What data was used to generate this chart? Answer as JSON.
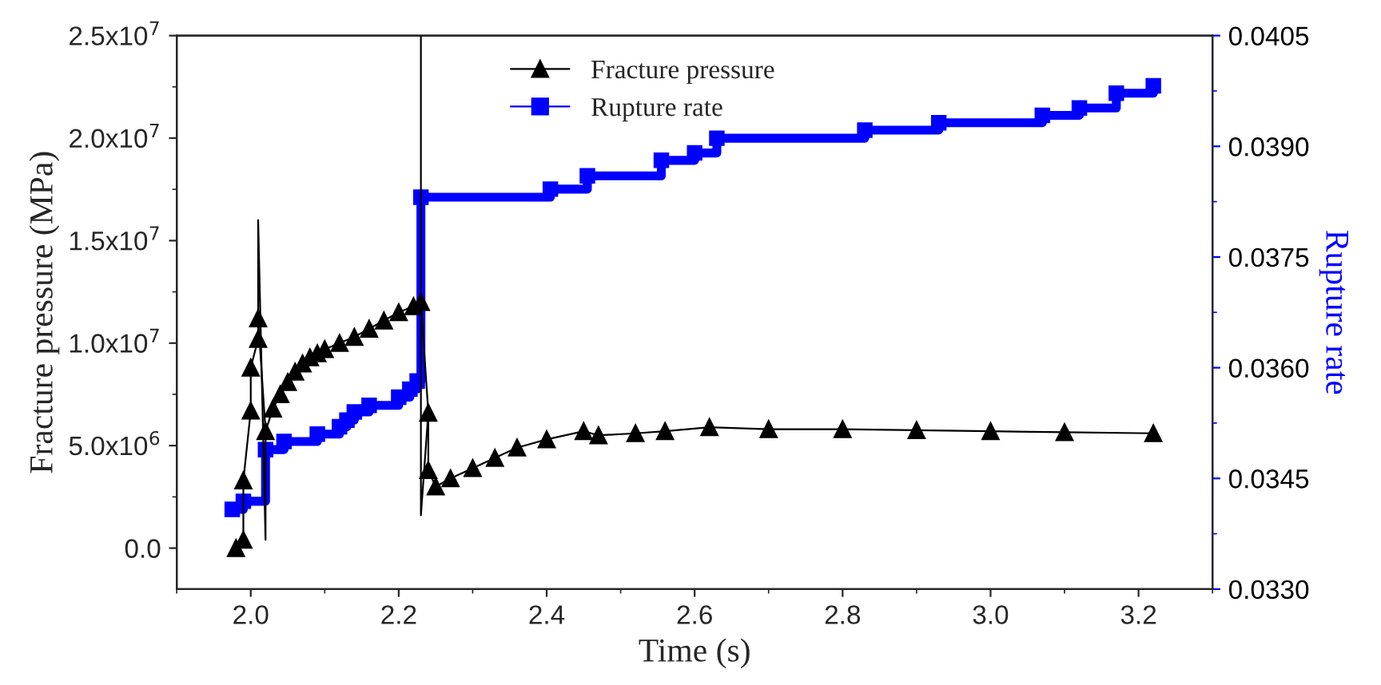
{
  "chart_data": {
    "type": "line",
    "xlabel": "Time (s)",
    "ylabel": "Fracture pressure (MPa)",
    "y2label": "Rupture rate",
    "xlim": [
      1.9,
      3.3
    ],
    "xticks": [
      {
        "value": 2,
        "label": "2.0"
      },
      2.2,
      2.4,
      2.6,
      2.8,
      {
        "value": 3,
        "label": "3.0"
      },
      3.2
    ],
    "ylim": [
      -2000000,
      25000000
    ],
    "yticks": [
      {
        "value": 0,
        "label": "0.0"
      },
      {
        "value": 5000000,
        "label": "5.0x10$^{6}$"
      },
      {
        "value": 10000000,
        "label": "1.0x10$^{7}$"
      },
      {
        "value": 15000000,
        "label": "1.5x10$^{7}$"
      },
      {
        "value": 20000000,
        "label": "2.0x10$^{7}$"
      },
      {
        "value": 25000000,
        "label": "2.5x10$^{7}$"
      }
    ],
    "y2lim": [
      0.033,
      0.0405
    ],
    "y2ticks": [
      {
        "value": 0.033,
        "label": "0.0330"
      },
      {
        "value": 0.0345,
        "label": "0.0345"
      },
      {
        "value": 0.036,
        "label": "0.0360"
      },
      {
        "value": 0.0375,
        "label": "0.0375"
      },
      {
        "value": 0.039,
        "label": "0.0390"
      },
      {
        "value": 0.0405,
        "label": "0.0405"
      }
    ],
    "legend": "top",
    "grid": false,
    "series": [
      {
        "name": "Fracture pressure",
        "color": "#000000",
        "marker": "triangle",
        "x": [
          1.98,
          1.99,
          1.99,
          2.0,
          2.0,
          2.01,
          2.01,
          2.02,
          2.03,
          2.04,
          2.05,
          2.06,
          2.07,
          2.08,
          2.09,
          2.1,
          2.12,
          2.14,
          2.16,
          2.18,
          2.2,
          2.22,
          2.23,
          2.24,
          2.24,
          2.25,
          2.27,
          2.3,
          2.33,
          2.36,
          2.4,
          2.45,
          2.47,
          2.52,
          2.56,
          2.62,
          2.7,
          2.8,
          2.9,
          3.0,
          3.1,
          3.22
        ],
        "values": [
          0,
          400000,
          3300000,
          6700000,
          8800000,
          10200000,
          11200000,
          5700000,
          6800000,
          7500000,
          8100000,
          8600000,
          9000000,
          9300000,
          9500000,
          9700000,
          10000000,
          10300000,
          10700000,
          11100000,
          11500000,
          11800000,
          12000000,
          6600000,
          3800000,
          3000000,
          3400000,
          3900000,
          4400000,
          4900000,
          5300000,
          5700000,
          5500000,
          5600000,
          5700000,
          5900000,
          5800000,
          5800000,
          5750000,
          5700000,
          5650000,
          5600000
        ]
      },
      {
        "color": "#000000",
        "marker": "none",
        "x": [
          2.01,
          2.01,
          2.02,
          2.02
        ],
        "values": [
          11200000,
          16000000,
          400000,
          5700000
        ]
      },
      {
        "color": "#000000",
        "marker": "none",
        "x": [
          2.23,
          2.23,
          2.23,
          2.24
        ],
        "values": [
          12000000,
          25000000,
          1600000,
          6600000
        ]
      },
      {
        "name": "Rupture rate",
        "type": "step",
        "axis": "y2",
        "color": "#0000ff",
        "marker": "square",
        "x": [
          1.975,
          1.99,
          2.02,
          2.045,
          2.09,
          2.12,
          2.13,
          2.14,
          2.16,
          2.2,
          2.215,
          2.225,
          2.23,
          2.405,
          2.455,
          2.555,
          2.6,
          2.63,
          2.83,
          2.93,
          3.07,
          3.12,
          3.17,
          3.22
        ],
        "values": [
          0.03408,
          0.03419,
          0.03489,
          0.035,
          0.0351,
          0.0352,
          0.03529,
          0.0354,
          0.03549,
          0.0356,
          0.03571,
          0.03582,
          0.03831,
          0.03842,
          0.0386,
          0.03881,
          0.03891,
          0.03911,
          0.03922,
          0.03932,
          0.03942,
          0.03952,
          0.03972,
          0.03982
        ]
      }
    ]
  }
}
